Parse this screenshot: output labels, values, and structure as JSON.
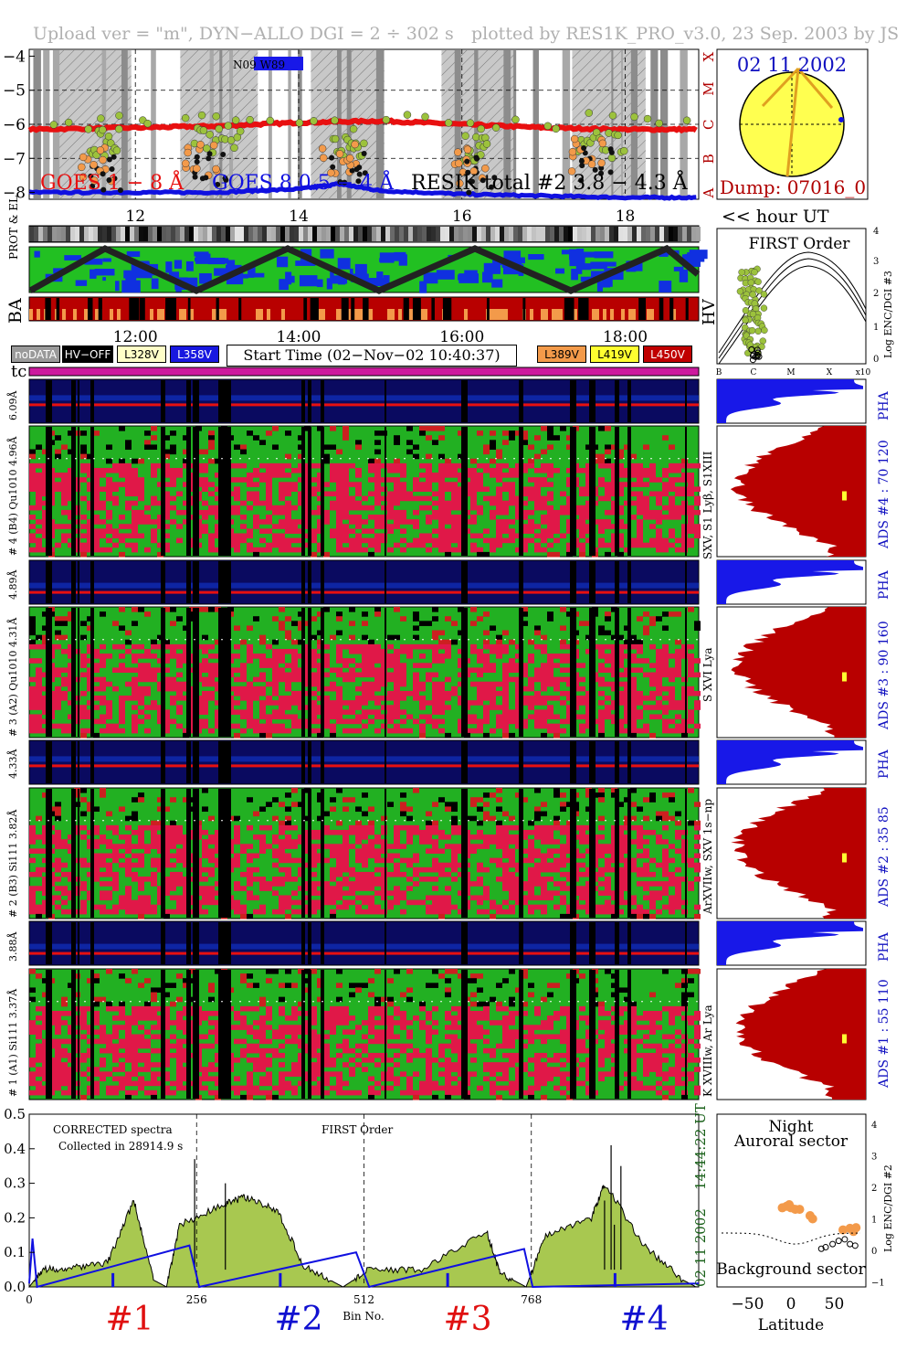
{
  "header": {
    "left": "Upload ver = \"m\", DYN−ALLO DGI =   2 ÷ 302 s",
    "right": "plotted by RES1K_PRO_v3.0, 23 Sep. 2003 by JS"
  },
  "goes_panel": {
    "y_ticks": [
      "−4",
      "−5",
      "−6",
      "−7",
      "−8"
    ],
    "class_labels": [
      "X",
      "M",
      "C",
      "B",
      "A"
    ],
    "legend_goes_long": "GOES 1 − 8 Å",
    "legend_goes_short": "GOES 8 0.5 − 4 Å",
    "legend_resik": "RESIK total #2  3.8 − 4.3 Å",
    "inset_label": "N09 W89",
    "hour_ticks": [
      "12",
      "14",
      "16",
      "18"
    ],
    "hour_unit": "<< hour UT"
  },
  "sun_panel": {
    "date": "02 11 2002",
    "dump": "Dump: 07016_0"
  },
  "orbit_strips": {
    "label_prot": "PROT & EL",
    "label_ba": "BA",
    "label_hv": "HV"
  },
  "time_axis": {
    "ticks": [
      "12:00",
      "14:00",
      "16:00",
      "18:00"
    ]
  },
  "buttons": {
    "nodata": "noDATA",
    "hvoff": "HV−OFF",
    "l328": "L328V",
    "l358": "L358V",
    "l389": "L389V",
    "l419": "L419V",
    "l450": "L450V"
  },
  "start_time": "Start Time (02−Nov−02 10:40:37)",
  "tc_label": "tc",
  "first_order_panel": {
    "title": "FIRST Order",
    "y_label": "Log ENC/DGI #3",
    "y_ticks": [
      "4",
      "3",
      "2",
      "1",
      "0"
    ],
    "x_ticks": [
      "B",
      "C",
      "M",
      "X",
      "x10"
    ]
  },
  "channels": [
    {
      "pha_label": "6.09Å",
      "main_label": "# 4 (B4) Qu1010  4.96Å",
      "lines": "SXV, S1 Lyβ, S1XIII",
      "ads": "ADS #4 :  70 120",
      "pha_tag": "PHA"
    },
    {
      "pha_label": "4.89Å",
      "main_label": "# 3 (A2) Qu1010  4.31Å",
      "lines": "S XVI Lya",
      "ads": "ADS #3 :  90 160",
      "pha_tag": "PHA"
    },
    {
      "pha_label": "4.33Å",
      "main_label": "# 2 (B3) Si111  3.82Å",
      "lines": "ArXVIIw, SXV 1s−np",
      "ads": "ADS #2 :  35 85",
      "pha_tag": "PHA"
    },
    {
      "pha_label": "3.88Å",
      "main_label": "# 1 (A1) Si111  3.37Å",
      "lines": "K XVIIIw, Ar Lya",
      "ads": "ADS #1 :  55 110",
      "pha_tag": "PHA"
    }
  ],
  "spectrum_panel": {
    "note1": "CORRECTED spectra",
    "note2": "Collected in 28914.9 s",
    "note3": "FIRST Order",
    "y_ticks": [
      "0.5",
      "0.4",
      "0.3",
      "0.2",
      "0.1",
      "0.0"
    ],
    "x_ticks": [
      "0",
      "256",
      "512",
      "768"
    ],
    "x_label": "Bin No.",
    "date_time": "02 11 2002",
    "time": "14:44:22 UT",
    "channel_marks": [
      "#1",
      "#2",
      "#3",
      "#4"
    ]
  },
  "latitude_panel": {
    "title1": "Night",
    "title2": "Auroral sector",
    "bottom_label": "Background sector",
    "y_label": "Log ENC/DGI #2",
    "y_ticks": [
      "4",
      "3",
      "2",
      "1",
      "0",
      "−1"
    ],
    "x_ticks": [
      "−50",
      "0",
      "50"
    ],
    "x_label": "Latitude"
  },
  "colors": {
    "red": "#e81010",
    "blue": "#1010e0",
    "green": "#22c022",
    "olive": "#9cc23c",
    "orange": "#f39a4a",
    "darkred": "#b80000",
    "yellow": "#ffff50",
    "magenta": "#cc1a9e"
  },
  "chart_data": [
    {
      "type": "line",
      "title": "",
      "xlabel": "hour UT",
      "ylabel": "",
      "xlim": [
        10.7,
        18.9
      ],
      "ylim": [
        -8.2,
        -3.8
      ],
      "series": [
        {
          "name": "GOES 1 − 8 Å",
          "x": [
            10.7,
            12,
            13,
            14,
            15,
            16,
            17,
            18,
            18.9
          ],
          "values": [
            -6.15,
            -6.1,
            -6.05,
            -5.95,
            -5.9,
            -6.0,
            -6.1,
            -6.15,
            -6.15
          ]
        },
        {
          "name": "GOES 8 0.5 − 4 Å",
          "x": [
            10.7,
            12,
            13,
            14,
            14.5,
            15,
            16,
            17,
            18,
            18.9
          ],
          "values": [
            -8.0,
            -8.0,
            -8.0,
            -7.9,
            -7.75,
            -7.95,
            -8.05,
            -8.1,
            -8.15,
            -8.15
          ]
        },
        {
          "name": "RESIK total #2  3.8 − 4.3 Å",
          "x": [
            11.2,
            11.6,
            12.5,
            13.1,
            14.2,
            14.6,
            15.8,
            16.1,
            17.2,
            17.8
          ],
          "values": [
            -6.4,
            -7.4,
            -6.3,
            -7.4,
            -6.5,
            -7.2,
            -6.6,
            -7.5,
            -6.5,
            -7.2
          ]
        }
      ]
    },
    {
      "type": "area",
      "title": "",
      "xlabel": "Bin No.",
      "ylabel": "",
      "xlim": [
        0,
        1024
      ],
      "ylim": [
        0,
        0.5
      ],
      "x": [
        0,
        20,
        60,
        120,
        160,
        190,
        210,
        230,
        300,
        330,
        380,
        420,
        480,
        520,
        600,
        700,
        720,
        760,
        790,
        860,
        880,
        940,
        1000,
        1020
      ],
      "series": [
        {
          "name": "",
          "values": [
            0.0,
            0.05,
            0.055,
            0.07,
            0.25,
            0.02,
            0.0,
            0.18,
            0.24,
            0.26,
            0.22,
            0.06,
            0.0,
            0.05,
            0.05,
            0.16,
            0.04,
            0.0,
            0.15,
            0.2,
            0.3,
            0.12,
            0.02,
            0.0
          ]
        }
      ]
    }
  ]
}
